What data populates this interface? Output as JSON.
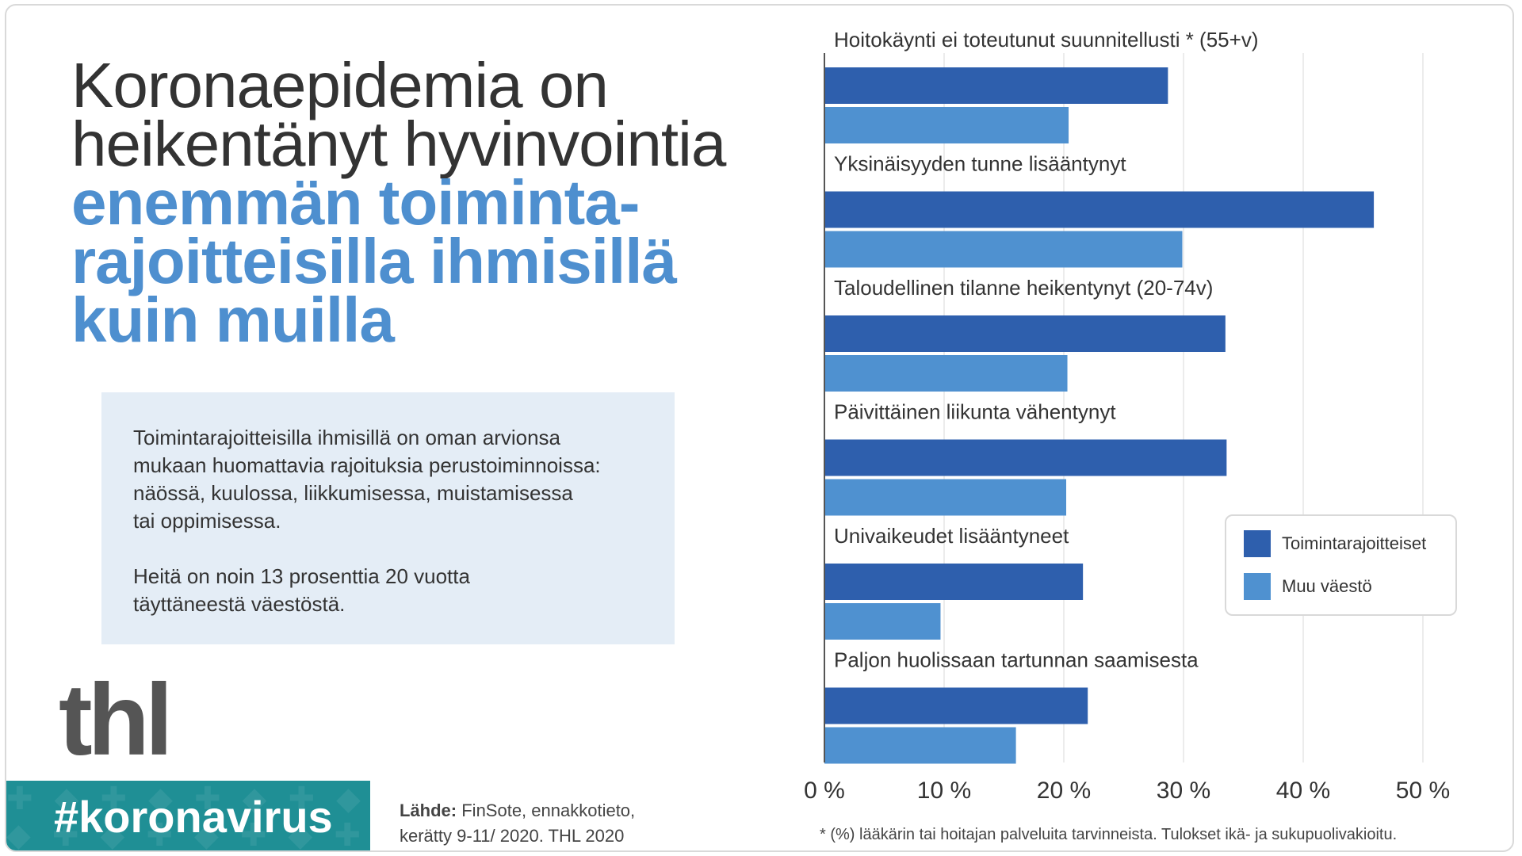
{
  "headline": {
    "line1": "Koronaepidemia on",
    "line2": "heikentänyt hyvinvointia",
    "line3": "enemmän toiminta-",
    "line4": "rajoitteisilla ihmisillä",
    "line5": "kuin muilla"
  },
  "infobox": {
    "paragraph1": "Toimintarajoitteisilla ihmisillä on oman arvionsa\nmukaan huomattavia rajoituksia perustoiminnoissa:\nnäössä, kuulossa, liikkumisessa, muistamisessa\ntai oppimisessa.",
    "paragraph2": "Heitä on noin 13 prosenttia 20 vuotta\ntäyttäneestä väestöstä."
  },
  "logo_text": "thl",
  "hashtag": "#koronavirus",
  "source": {
    "label": "Lähde:",
    "text": " FinSote, ennakkotieto,\nkerätty 9-11/ 2020. THL 2020"
  },
  "footnote": "* (%) lääkärin tai hoitajan palveluita  tarvinneista. Tulokset ikä- ja sukupuolivakioitu.",
  "colors": {
    "series_dark": "#2e5fad",
    "series_light": "#4f91d0",
    "headline_blue": "#4e8fcf",
    "hashtag_bg": "#1f8f95",
    "infobox_bg": "#e4edf6"
  },
  "chart_data": {
    "type": "bar",
    "orientation": "horizontal",
    "categories": [
      "Hoitokäynti ei toteutunut suunnitellusti * (55+v)",
      "Yksinäisyyden tunne lisääntynyt",
      "Taloudellinen tilanne heikentynyt (20-74v)",
      "Päivittäinen liikunta vähentynyt",
      "Univaikeudet lisääntyneet",
      "Paljon huolissaan tartunnan saamisesta"
    ],
    "series": [
      {
        "name": "Toimintarajoitteiset",
        "color": "#2e5fad",
        "values": [
          28.7,
          45.9,
          33.5,
          33.6,
          21.6,
          22.0
        ]
      },
      {
        "name": "Muu väestö",
        "color": "#4f91d0",
        "values": [
          20.4,
          29.9,
          20.3,
          20.2,
          9.7,
          16.0
        ]
      }
    ],
    "xlim": [
      0,
      50
    ],
    "xticks": [
      "0 %",
      "10 %",
      "20 %",
      "30 %",
      "40 %",
      "50 %"
    ],
    "grid": true,
    "legend_position": "right"
  }
}
